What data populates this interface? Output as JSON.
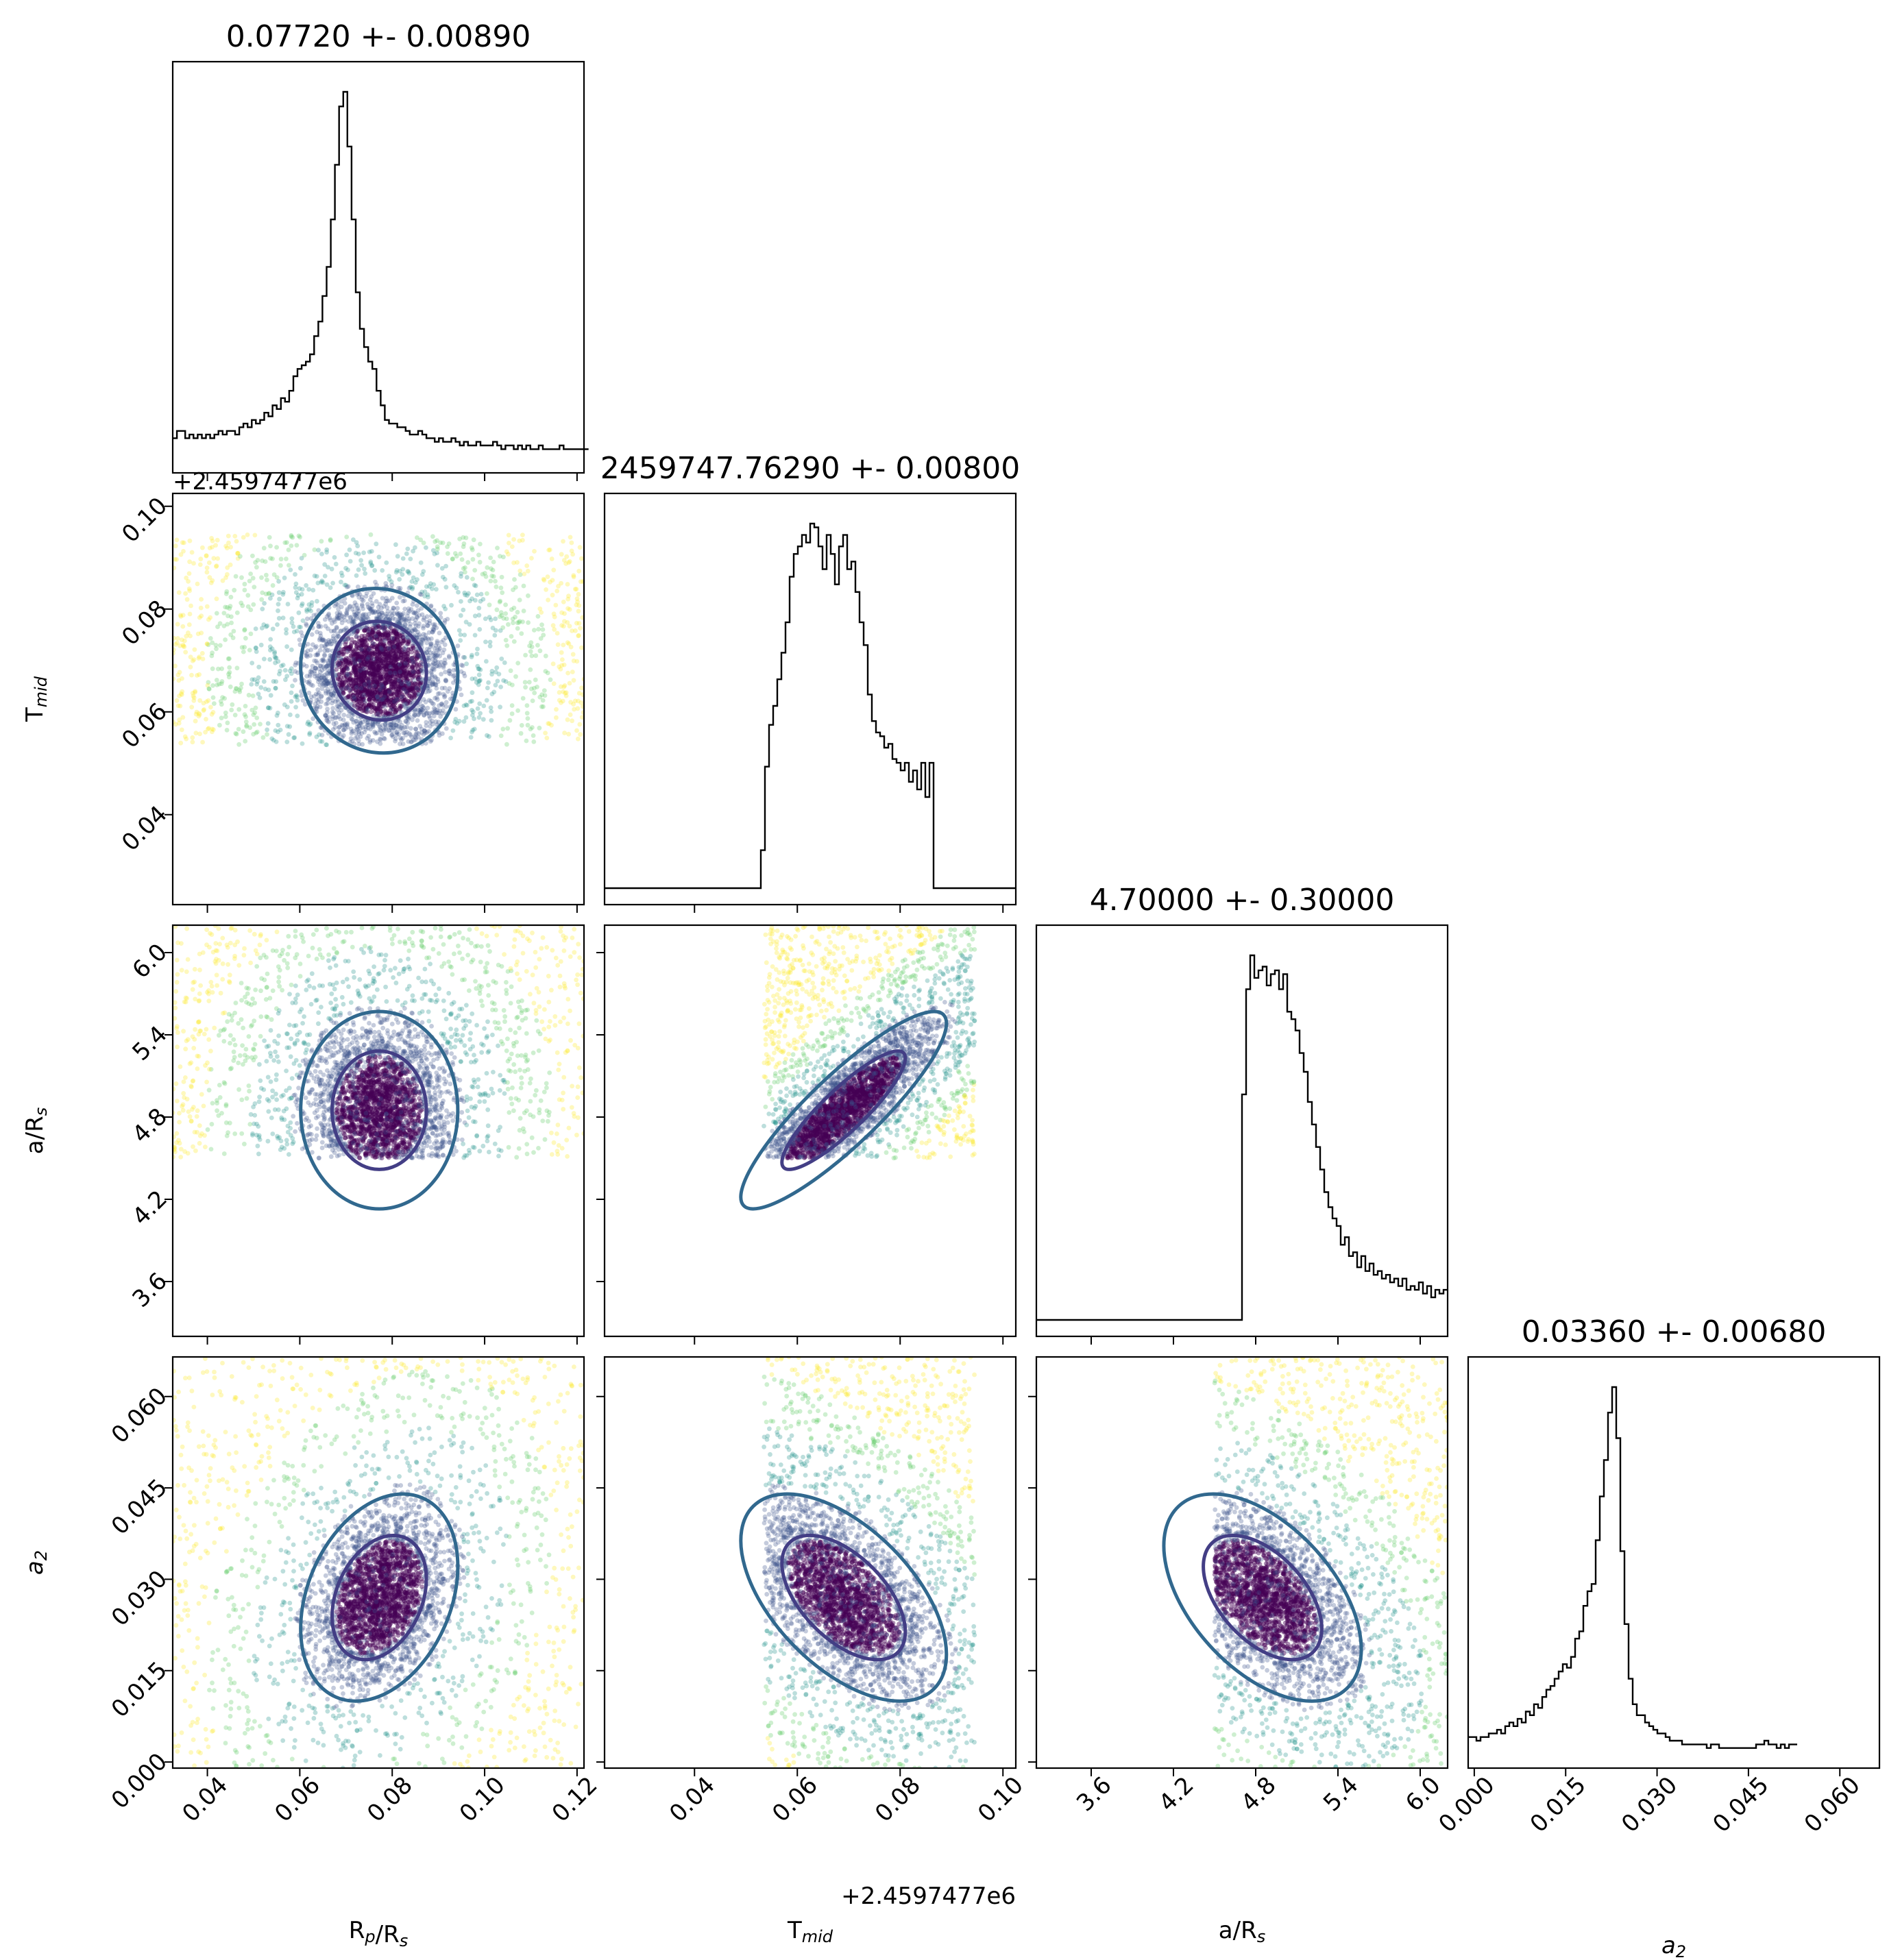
{
  "chart_data": {
    "type": "corner",
    "parameters": [
      {
        "key": "rp",
        "label_main": "R",
        "label_sub1": "p",
        "label_mid": "/R",
        "label_sub2": "s",
        "range": [
          0.0325,
          0.1215
        ],
        "ticks": [
          0.04,
          0.06,
          0.08,
          0.1,
          0.12
        ],
        "tick_labels": [
          "0.04",
          "0.06",
          "0.08",
          "0.10",
          "0.12"
        ],
        "ylabel_visible": false
      },
      {
        "key": "tmid",
        "label_main": "T",
        "label_sub1": "mid",
        "label_mid": "",
        "label_sub2": "",
        "range": [
          0.0225,
          0.1025
        ],
        "ticks": [
          0.04,
          0.06,
          0.08,
          0.1
        ],
        "tick_labels": [
          "0.04",
          "0.06",
          "0.08",
          "0.10"
        ],
        "y_tick_labels": [
          "0.04",
          "0.06",
          "0.08",
          "0.10"
        ],
        "offset_label": "+2.4597477e6"
      },
      {
        "key": "ars",
        "label_main": "a/R",
        "label_sub1": "",
        "label_mid": "",
        "label_sub2": "s",
        "range": [
          3.2,
          6.2
        ],
        "ticks": [
          3.6,
          4.2,
          4.8,
          5.4,
          6.0
        ],
        "tick_labels": [
          "3.6",
          "4.2",
          "4.8",
          "5.4",
          "6.0"
        ]
      },
      {
        "key": "a2",
        "label_main": "a",
        "label_sub1": "",
        "label_mid": "",
        "label_sub2": "2",
        "range": [
          -0.001,
          0.0665
        ],
        "ticks": [
          0.0,
          0.015,
          0.03,
          0.045,
          0.06
        ],
        "tick_labels": [
          "0.000",
          "0.015",
          "0.030",
          "0.045",
          "0.060"
        ]
      }
    ],
    "titles": [
      "0.07720 +- 0.00890",
      "2459747.76290 +- 0.00800",
      "4.70000 +- 0.30000",
      "0.03360 +- 0.00680"
    ],
    "histograms": [
      {
        "x0": 0.0325,
        "dx": 0.0009,
        "counts": [
          5,
          7,
          7,
          5,
          6,
          5,
          6,
          5,
          6,
          5,
          6,
          7,
          6,
          7,
          7,
          6,
          8,
          9,
          8,
          10,
          9,
          10,
          12,
          11,
          14,
          13,
          16,
          15,
          18,
          22,
          24,
          25,
          26,
          28,
          33,
          37,
          44,
          52,
          65,
          80,
          96,
          100,
          85,
          65,
          45,
          35,
          30,
          26,
          24,
          18,
          14,
          10,
          9,
          9,
          8,
          8,
          7,
          6,
          6,
          7,
          6,
          5,
          5,
          4,
          5,
          4,
          4,
          5,
          4,
          3,
          4,
          3,
          3,
          4,
          3,
          3,
          3,
          4,
          3,
          2,
          3,
          3,
          2,
          3,
          2,
          3,
          2,
          2,
          3,
          2,
          2,
          2,
          2,
          3,
          2,
          2,
          2,
          2,
          2,
          2
        ]
      },
      {
        "x0": 0.0225,
        "dx": 0.0008,
        "counts": [
          0,
          0,
          0,
          0,
          0,
          0,
          0,
          0,
          0,
          0,
          0,
          0,
          0,
          0,
          0,
          0,
          0,
          0,
          0,
          0,
          0,
          0,
          0,
          0,
          0,
          0,
          0,
          0,
          0,
          0,
          0,
          0,
          0,
          0,
          0,
          0,
          0,
          0,
          10,
          32,
          43,
          48,
          55,
          62,
          70,
          82,
          88,
          90,
          93,
          91,
          96,
          95,
          90,
          84,
          93,
          88,
          80,
          90,
          93,
          84,
          86,
          78,
          70,
          64,
          51,
          44,
          41,
          40,
          37,
          38,
          34,
          33,
          31,
          33,
          28,
          31,
          26,
          33,
          24,
          33,
          0,
          0,
          0,
          0,
          0,
          0,
          0,
          0,
          0,
          0,
          0,
          0,
          0,
          0,
          0,
          0,
          0,
          0,
          0,
          0
        ]
      },
      {
        "x0": 3.2,
        "dx": 0.03,
        "counts": [
          0,
          0,
          0,
          0,
          0,
          0,
          0,
          0,
          0,
          0,
          0,
          0,
          0,
          0,
          0,
          0,
          0,
          0,
          0,
          0,
          0,
          0,
          0,
          0,
          0,
          0,
          0,
          0,
          0,
          0,
          0,
          0,
          0,
          0,
          0,
          0,
          0,
          0,
          0,
          0,
          0,
          0,
          0,
          0,
          0,
          0,
          0,
          0,
          0,
          0,
          60,
          88,
          97,
          91,
          93,
          94,
          89,
          92,
          93,
          88,
          92,
          82,
          80,
          77,
          71,
          66,
          58,
          52,
          46,
          40,
          34,
          30,
          27,
          25,
          20,
          22,
          17,
          18,
          14,
          17,
          13,
          15,
          12,
          13,
          11,
          12,
          10,
          11,
          9,
          11,
          8,
          9,
          8,
          10,
          7,
          9,
          6,
          8,
          7,
          8
        ]
      },
      {
        "x0": -0.001,
        "dx": 0.000675,
        "counts": [
          4,
          4,
          3,
          4,
          4,
          5,
          5,
          6,
          5,
          7,
          8,
          7,
          9,
          8,
          11,
          10,
          13,
          12,
          15,
          17,
          18,
          20,
          22,
          24,
          23,
          26,
          31,
          33,
          40,
          44,
          46,
          58,
          70,
          80,
          93,
          100,
          86,
          55,
          35,
          20,
          13,
          10,
          10,
          8,
          7,
          6,
          5,
          5,
          4,
          3,
          3,
          3,
          2,
          2,
          2,
          2,
          2,
          2,
          1,
          2,
          2,
          1,
          1,
          1,
          1,
          1,
          1,
          1,
          1,
          1,
          2,
          2,
          3,
          2,
          2,
          1,
          2,
          1,
          2,
          2
        ]
      }
    ],
    "pairs": [
      {
        "row": 1,
        "col": 0,
        "x_mean": 0.0772,
        "x_sd": 0.0085,
        "y_mean": 0.068,
        "y_sd": 0.008,
        "rho": -0.05,
        "x_bounds": [
          0.0325,
          0.1215
        ],
        "y_bounds": [
          0.0535,
          0.0945
        ]
      },
      {
        "row": 2,
        "col": 0,
        "x_mean": 0.0772,
        "x_sd": 0.0085,
        "y_mean": 4.85,
        "y_sd": 0.36,
        "rho": 0.0,
        "x_bounds": [
          0.0325,
          0.1215
        ],
        "y_bounds": [
          4.5,
          6.2
        ]
      },
      {
        "row": 2,
        "col": 1,
        "x_mean": 0.069,
        "x_sd": 0.01,
        "y_mean": 4.85,
        "y_sd": 0.36,
        "rho": 0.88,
        "x_bounds": [
          0.0535,
          0.0945
        ],
        "y_bounds": [
          4.5,
          6.2
        ]
      },
      {
        "row": 3,
        "col": 0,
        "x_mean": 0.0772,
        "x_sd": 0.0085,
        "y_mean": 0.027,
        "y_sd": 0.0085,
        "rho": 0.3,
        "x_bounds": [
          0.0325,
          0.1215
        ],
        "y_bounds": [
          -0.001,
          0.0665
        ]
      },
      {
        "row": 3,
        "col": 1,
        "x_mean": 0.069,
        "x_sd": 0.01,
        "y_mean": 0.027,
        "y_sd": 0.0085,
        "rho": -0.55,
        "x_bounds": [
          0.0535,
          0.0945
        ],
        "y_bounds": [
          -0.001,
          0.0665
        ]
      },
      {
        "row": 3,
        "col": 2,
        "x_mean": 4.85,
        "x_sd": 0.36,
        "y_mean": 0.027,
        "y_sd": 0.0085,
        "rho": -0.5,
        "x_bounds": [
          4.5,
          6.2
        ],
        "y_bounds": [
          -0.001,
          0.0665
        ]
      }
    ],
    "contour_levels": [
      {
        "name": "inner",
        "sigma": 1.2,
        "color": "#433e85"
      },
      {
        "name": "outer",
        "sigma": 2.0,
        "color": "#31688e"
      },
      {
        "name": "tail",
        "color": "#fde725"
      }
    ],
    "point_colormap": [
      "#440154",
      "#3b528b",
      "#21918c",
      "#5ec962",
      "#fde725"
    ],
    "grid": false,
    "legend": "none"
  }
}
